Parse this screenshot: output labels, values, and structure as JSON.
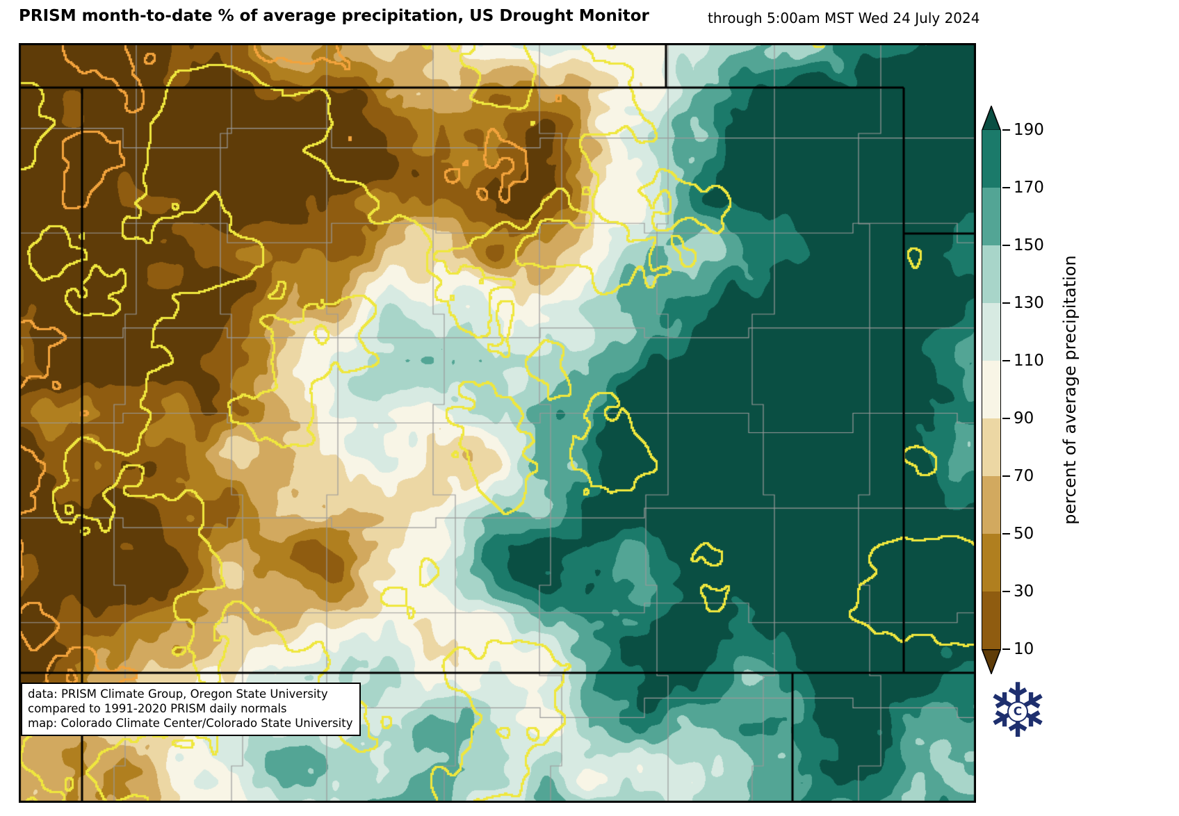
{
  "header": {
    "title": "PRISM month-to-date % of average precipitation, US Drought Monitor",
    "timestamp": "through 5:00am MST Wed 24 July 2024"
  },
  "colorbar": {
    "label": "percent of average precipitation",
    "ticks": [
      "190",
      "170",
      "150",
      "130",
      "110",
      "90",
      "70",
      "50",
      "30",
      "10"
    ],
    "colors_low_to_high": [
      "#5f3c08",
      "#8f5c10",
      "#b07f1f",
      "#d2a95f",
      "#ecd7a4",
      "#f8f5e6",
      "#d7eae2",
      "#a8d5c9",
      "#53a595",
      "#1b7a6a",
      "#0a4f43"
    ]
  },
  "attribution": {
    "line1": "data: PRISM Climate Group, Oregon State University",
    "line2": "compared to 1991-2020 PRISM daily normals",
    "line3": "map: Colorado Climate Center/Colorado State University"
  },
  "map": {
    "border_color": "#000000",
    "county_line_color": "#9a9a9a",
    "contour_colors": {
      "yellow": "#efe73e",
      "orange": "#f2a33c"
    }
  },
  "logo": {
    "icon": "snowflake-icon",
    "glyph": "❄",
    "monogram": "C",
    "color": "#1e2f6e"
  }
}
